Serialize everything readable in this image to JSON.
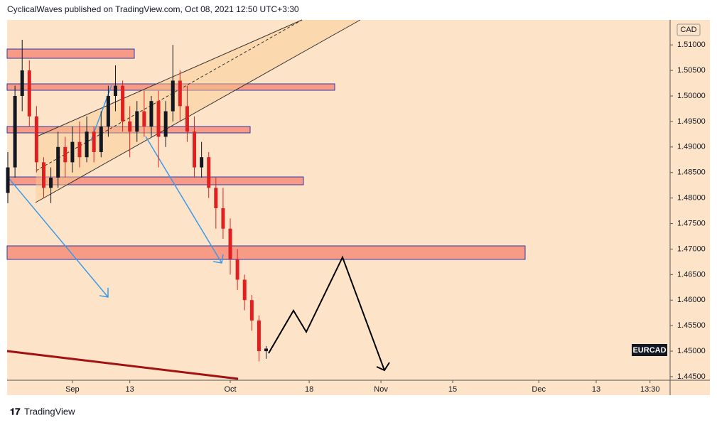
{
  "header": "CyclicalWaves published on TradingView.com, Oct 08, 2021 12:50 UTC+3:30",
  "footer": "TradingView",
  "chart_data": {
    "type": "candlestick",
    "symbol": "EURCAD",
    "currency": "CAD",
    "up_color": "#131722",
    "down_color": "#e02020",
    "x": [
      -9,
      -8,
      -7,
      -6,
      -5,
      -4,
      -3,
      -2,
      -1,
      0,
      1,
      2,
      3,
      4,
      5,
      6,
      7,
      8,
      9,
      10,
      11,
      12,
      13,
      14,
      15,
      16,
      17,
      18,
      19,
      20,
      21,
      22,
      23,
      24,
      25,
      26,
      27
    ],
    "open": [
      1.481,
      1.486,
      1.5,
      1.505,
      1.496,
      1.487,
      1.482,
      1.484,
      1.49,
      1.487,
      1.491,
      1.488,
      1.493,
      1.489,
      1.494,
      1.5,
      1.502,
      1.495,
      1.493,
      1.497,
      1.494,
      1.499,
      1.492,
      1.497,
      1.503,
      1.498,
      1.493,
      1.486,
      1.488,
      1.482,
      1.478,
      1.474,
      1.468,
      1.464,
      1.46,
      1.456,
      1.45
    ],
    "high": [
      1.489,
      1.502,
      1.511,
      1.507,
      1.498,
      1.488,
      1.486,
      1.493,
      1.492,
      1.494,
      1.495,
      1.496,
      1.494,
      1.497,
      1.502,
      1.506,
      1.503,
      1.498,
      1.499,
      1.501,
      1.5,
      1.501,
      1.499,
      1.51,
      1.505,
      1.502,
      1.496,
      1.491,
      1.489,
      1.484,
      1.482,
      1.476,
      1.47,
      1.465,
      1.461,
      1.457,
      1.451
    ],
    "low": [
      1.479,
      1.484,
      1.497,
      1.494,
      1.485,
      1.48,
      1.479,
      1.482,
      1.484,
      1.485,
      1.486,
      1.487,
      1.487,
      1.488,
      1.492,
      1.497,
      1.493,
      1.488,
      1.491,
      1.492,
      1.492,
      1.486,
      1.49,
      1.495,
      1.495,
      1.491,
      1.484,
      1.484,
      1.48,
      1.474,
      1.472,
      1.465,
      1.462,
      1.458,
      1.454,
      1.448,
      1.4485
    ],
    "close": [
      1.486,
      1.5,
      1.505,
      1.496,
      1.487,
      1.482,
      1.484,
      1.49,
      1.487,
      1.491,
      1.488,
      1.493,
      1.489,
      1.494,
      1.5,
      1.502,
      1.495,
      1.493,
      1.497,
      1.494,
      1.499,
      1.492,
      1.497,
      1.503,
      1.498,
      1.493,
      1.486,
      1.488,
      1.482,
      1.478,
      1.474,
      1.468,
      1.464,
      1.46,
      1.456,
      1.45,
      1.4505
    ],
    "xlim": [
      -9.1,
      83.3
    ],
    "xticks": [
      {
        "value": 0,
        "label": "Sep"
      },
      {
        "value": 8,
        "label": "13"
      },
      {
        "value": 22,
        "label": "Oct"
      },
      {
        "value": 33,
        "label": "18"
      },
      {
        "value": 43,
        "label": "Nov"
      },
      {
        "value": 53,
        "label": "15"
      },
      {
        "value": 65,
        "label": "Dec"
      },
      {
        "value": 73,
        "label": "13"
      },
      {
        "value": 80.5,
        "label": "13:30"
      }
    ],
    "ylim": [
      1.4443,
      1.5149
    ],
    "yticks": [
      {
        "value": 1.445,
        "label": "1.44500"
      },
      {
        "value": 1.45,
        "label": "1.45000"
      },
      {
        "value": 1.455,
        "label": "1.45500"
      },
      {
        "value": 1.46,
        "label": "1.46000"
      },
      {
        "value": 1.465,
        "label": "1.46500"
      },
      {
        "value": 1.47,
        "label": "1.47000"
      },
      {
        "value": 1.475,
        "label": "1.47500"
      },
      {
        "value": 1.48,
        "label": "1.48000"
      },
      {
        "value": 1.485,
        "label": "1.48500"
      },
      {
        "value": 1.49,
        "label": "1.49000"
      },
      {
        "value": 1.495,
        "label": "1.49500"
      },
      {
        "value": 1.5,
        "label": "1.50000"
      },
      {
        "value": 1.505,
        "label": "1.50500"
      },
      {
        "value": 1.51,
        "label": "1.51000"
      }
    ]
  }
}
